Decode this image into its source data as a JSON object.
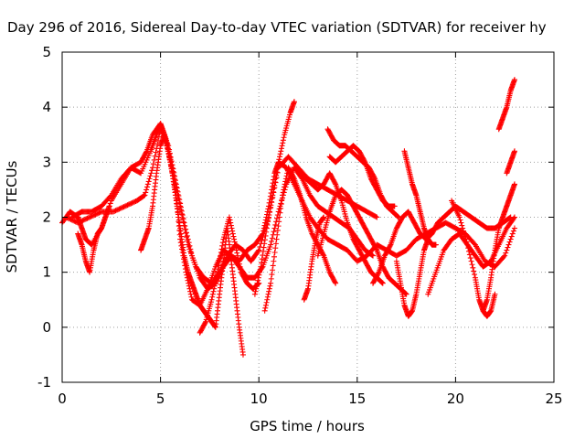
{
  "chart_data": {
    "type": "scatter",
    "title": "Day 296 of 2016, Sidereal Day-to-day VTEC variation (SDTVAR) for receiver hy",
    "xlabel": "GPS time / hours",
    "ylabel": "SDTVAR / TECUs",
    "xlim": [
      0,
      25
    ],
    "ylim": [
      -1,
      5
    ],
    "xticks": [
      "0",
      "5",
      "10",
      "15",
      "20",
      "25"
    ],
    "yticks": [
      "-1",
      "0",
      "1",
      "2",
      "3",
      "4",
      "5"
    ],
    "grid": true,
    "marker": "plus",
    "color": "#ff0000",
    "series": [
      {
        "x": [
          0.0,
          0.4,
          0.8,
          1.0,
          1.2,
          1.5,
          2.0,
          2.5,
          3.0,
          3.5,
          4.0,
          4.5,
          4.8,
          5.0,
          5.2,
          5.5,
          5.8,
          6.0,
          6.3,
          6.6,
          7.0,
          7.4,
          7.8,
          8.2,
          8.6,
          9.0,
          9.4,
          9.8,
          10.2,
          10.5,
          10.8,
          11.0,
          11.4,
          11.8,
          12.2,
          12.6,
          13.0,
          13.5,
          14.0,
          14.5,
          15.0,
          15.5,
          16.0,
          16.5,
          17.0,
          17.5,
          18.0,
          18.5,
          19.0,
          19.5,
          20.0,
          20.5,
          21.0,
          21.5,
          22.0,
          22.5,
          23.0
        ],
        "y": [
          1.9,
          2.1,
          2.0,
          1.8,
          1.6,
          1.5,
          1.8,
          2.3,
          2.6,
          2.9,
          2.8,
          3.2,
          3.5,
          3.7,
          3.5,
          3.0,
          2.4,
          1.6,
          1.0,
          0.5,
          0.4,
          0.7,
          1.1,
          1.4,
          1.3,
          1.2,
          1.4,
          1.5,
          1.7,
          2.2,
          2.8,
          3.0,
          2.9,
          2.6,
          2.3,
          2.0,
          1.8,
          1.6,
          1.5,
          1.4,
          1.2,
          1.3,
          1.5,
          1.4,
          1.3,
          1.4,
          1.6,
          1.7,
          1.8,
          1.9,
          1.8,
          1.7,
          1.5,
          1.2,
          1.1,
          1.3,
          1.8
        ]
      },
      {
        "x": [
          0.5,
          1.0,
          1.5,
          2.0,
          2.5,
          3.0,
          3.5,
          4.0,
          4.3,
          4.6,
          5.0,
          5.3,
          5.6,
          6.0,
          6.4,
          6.8,
          7.2,
          7.6,
          8.0,
          8.4,
          8.8,
          9.2,
          9.6,
          10.0,
          10.5,
          11.0,
          11.5,
          12.0,
          12.5,
          13.0,
          13.5,
          14.0,
          14.5,
          15.0,
          15.5,
          16.0
        ],
        "y": [
          2.0,
          2.1,
          2.1,
          2.2,
          2.4,
          2.7,
          2.9,
          3.0,
          3.2,
          3.5,
          3.7,
          3.4,
          2.9,
          2.2,
          1.5,
          1.1,
          0.9,
          0.8,
          1.0,
          1.3,
          1.5,
          1.4,
          1.2,
          1.4,
          2.0,
          2.9,
          3.1,
          2.9,
          2.7,
          2.6,
          2.5,
          2.4,
          2.3,
          2.2,
          2.1,
          2.0
        ]
      },
      {
        "x": [
          0.2,
          0.8,
          1.4,
          2.0,
          2.6,
          3.2,
          3.8,
          4.2,
          4.6,
          5.0,
          5.4,
          5.8,
          6.2,
          6.6,
          7.0,
          7.4,
          7.8,
          8.2,
          8.6,
          9.0,
          9.4,
          9.8,
          10.2,
          10.6,
          11.0,
          11.4,
          11.8,
          12.2,
          12.6,
          13.0,
          13.4,
          13.8,
          14.2,
          14.6,
          15.0,
          15.4,
          15.8
        ],
        "y": [
          2.0,
          1.9,
          2.0,
          2.1,
          2.1,
          2.2,
          2.3,
          2.4,
          2.9,
          3.6,
          3.3,
          2.6,
          1.9,
          1.3,
          0.9,
          0.7,
          0.8,
          1.1,
          1.3,
          1.1,
          0.9,
          0.9,
          1.1,
          1.5,
          2.1,
          2.6,
          2.9,
          2.7,
          2.4,
          2.2,
          2.1,
          2.0,
          1.9,
          1.8,
          1.6,
          1.4,
          1.3
        ]
      },
      {
        "x": [
          0.8,
          1.0,
          1.2,
          1.4,
          1.6,
          1.8,
          2.0,
          2.2,
          2.4
        ],
        "y": [
          1.7,
          1.5,
          1.2,
          1.0,
          1.4,
          1.7,
          1.8,
          2.0,
          2.2
        ]
      },
      {
        "x": [
          4.0,
          4.2,
          4.4,
          4.6,
          4.8,
          5.0,
          5.2,
          5.4,
          5.6,
          5.8,
          6.0,
          6.2,
          6.4,
          6.6,
          6.8,
          7.0,
          7.2,
          7.4,
          7.6,
          7.8,
          8.0,
          8.2,
          8.4,
          8.6,
          8.8,
          9.0,
          9.2
        ],
        "y": [
          1.4,
          1.6,
          1.8,
          2.2,
          2.8,
          3.3,
          3.5,
          3.2,
          2.8,
          2.3,
          1.8,
          1.3,
          1.0,
          0.8,
          0.6,
          0.4,
          0.3,
          0.2,
          0.1,
          0.0,
          0.6,
          1.2,
          1.8,
          1.2,
          0.6,
          0.0,
          -0.5
        ]
      },
      {
        "x": [
          7.0,
          7.3,
          7.6,
          7.9,
          8.2,
          8.5,
          8.8,
          9.1,
          9.4,
          9.7,
          10.0
        ],
        "y": [
          -0.1,
          0.1,
          0.5,
          1.0,
          1.6,
          2.0,
          1.5,
          1.0,
          0.8,
          0.7,
          0.8
        ]
      },
      {
        "x": [
          9.8,
          10.1,
          10.4,
          10.7,
          11.0,
          11.3,
          11.6,
          11.8
        ],
        "y": [
          0.6,
          1.1,
          1.8,
          2.4,
          3.0,
          3.5,
          3.9,
          4.1
        ]
      },
      {
        "x": [
          10.3,
          10.6,
          10.9,
          11.2,
          11.5,
          11.8,
          12.1,
          12.4,
          12.7,
          13.0,
          13.3,
          13.6,
          13.9
        ],
        "y": [
          0.3,
          0.8,
          1.6,
          2.4,
          2.9,
          2.7,
          2.4,
          2.0,
          1.7,
          1.5,
          1.3,
          1.0,
          0.8
        ]
      },
      {
        "x": [
          11.8,
          12.1,
          12.4,
          12.7,
          13.0,
          13.3,
          13.6,
          13.9,
          14.2,
          14.5,
          14.8,
          15.1,
          15.4,
          15.7,
          16.0,
          16.3
        ],
        "y": [
          2.9,
          2.8,
          2.7,
          2.6,
          2.5,
          2.6,
          2.8,
          2.6,
          2.3,
          1.9,
          1.6,
          1.4,
          1.2,
          1.0,
          0.9,
          0.8
        ]
      },
      {
        "x": [
          12.3,
          12.5,
          12.7,
          12.9,
          13.1,
          13.3
        ],
        "y": [
          0.5,
          0.7,
          1.2,
          1.6,
          1.9,
          2.0
        ]
      },
      {
        "x": [
          13.0,
          13.3,
          13.6,
          13.9,
          14.2,
          14.5,
          14.8,
          15.1,
          15.4,
          15.7,
          16.0,
          16.3,
          16.6,
          16.9,
          17.2,
          17.5
        ],
        "y": [
          1.3,
          1.7,
          2.1,
          2.4,
          2.5,
          2.4,
          2.2,
          2.0,
          1.8,
          1.6,
          1.4,
          1.1,
          0.9,
          0.8,
          0.7,
          0.6
        ]
      },
      {
        "x": [
          13.5,
          13.8,
          14.1,
          14.4,
          14.7,
          15.0,
          15.3,
          15.6,
          15.9,
          16.2,
          16.5,
          16.8,
          17.1
        ],
        "y": [
          3.6,
          3.4,
          3.3,
          3.3,
          3.2,
          3.1,
          3.0,
          2.9,
          2.7,
          2.4,
          2.2,
          2.1,
          2.0
        ]
      },
      {
        "x": [
          13.6,
          13.9,
          14.2,
          14.5,
          14.8,
          15.1,
          15.4,
          15.7,
          16.0,
          16.3,
          16.6,
          16.9
        ],
        "y": [
          3.1,
          3.0,
          3.1,
          3.2,
          3.3,
          3.2,
          3.0,
          2.7,
          2.5,
          2.3,
          2.2,
          2.2
        ]
      },
      {
        "x": [
          15.8,
          16.1,
          16.4,
          16.7,
          17.0,
          17.3,
          17.6,
          17.9,
          18.2,
          18.5,
          18.8,
          19.1,
          19.4,
          19.7,
          20.0
        ],
        "y": [
          0.8,
          1.0,
          1.3,
          1.5,
          1.8,
          2.0,
          2.1,
          1.9,
          1.7,
          1.6,
          1.7,
          1.9,
          2.0,
          2.1,
          2.2
        ]
      },
      {
        "x": [
          17.0,
          17.2,
          17.4,
          17.6,
          17.8,
          18.0,
          18.2,
          18.4,
          18.6
        ],
        "y": [
          1.2,
          0.8,
          0.4,
          0.2,
          0.3,
          0.6,
          1.0,
          1.4,
          1.6
        ]
      },
      {
        "x": [
          17.4,
          17.6,
          17.8,
          18.0,
          18.2,
          18.4,
          18.6,
          18.8,
          19.0
        ],
        "y": [
          3.2,
          2.9,
          2.6,
          2.4,
          2.1,
          1.8,
          1.6,
          1.5,
          1.5
        ]
      },
      {
        "x": [
          18.6,
          19.0,
          19.4,
          19.8,
          20.2,
          20.6,
          21.0,
          21.4,
          21.8,
          22.2,
          22.6,
          23.0
        ],
        "y": [
          0.6,
          1.0,
          1.4,
          1.6,
          1.7,
          1.5,
          1.3,
          1.1,
          1.2,
          1.5,
          1.8,
          2.0
        ]
      },
      {
        "x": [
          19.8,
          20.2,
          20.6,
          21.0,
          21.2,
          21.4,
          21.6,
          21.8,
          22.0
        ],
        "y": [
          2.3,
          2.0,
          1.5,
          0.9,
          0.5,
          0.3,
          0.2,
          0.3,
          0.6
        ]
      },
      {
        "x": [
          21.4,
          21.6,
          21.8,
          22.0,
          22.2,
          22.4,
          22.6,
          22.8,
          23.0
        ],
        "y": [
          0.3,
          0.5,
          0.9,
          1.4,
          1.8,
          2.0,
          2.2,
          2.4,
          2.6
        ]
      },
      {
        "x": [
          20.0,
          20.4,
          20.8,
          21.2,
          21.6,
          22.0,
          22.4,
          22.8
        ],
        "y": [
          2.2,
          2.1,
          2.0,
          1.9,
          1.8,
          1.8,
          1.9,
          2.0
        ]
      },
      {
        "x": [
          22.2,
          22.4,
          22.6,
          22.8,
          23.0
        ],
        "y": [
          3.6,
          3.8,
          4.0,
          4.3,
          4.5
        ]
      },
      {
        "x": [
          22.6,
          22.8,
          23.0
        ],
        "y": [
          2.8,
          3.0,
          3.2
        ]
      }
    ]
  }
}
